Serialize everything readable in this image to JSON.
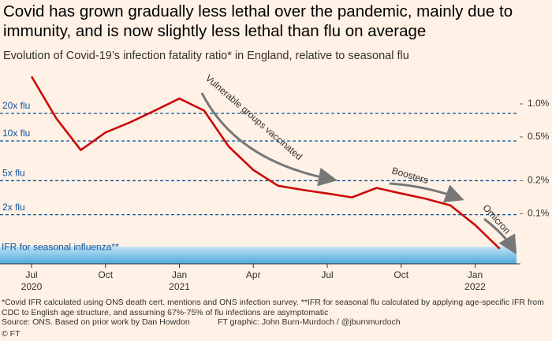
{
  "chart_data": {
    "type": "line",
    "title": "Covid has grown gradually less lethal over the pandemic, mainly due to immunity, and is now slightly less lethal than flu on average",
    "subtitle": "Evolution of Covid-19’s infection fatality ratio* in England, relative to seasonal flu",
    "x": [
      "2020-07",
      "2020-08",
      "2020-09",
      "2020-10",
      "2020-11",
      "2020-12",
      "2021-01",
      "2021-02",
      "2021-03",
      "2021-04",
      "2021-05",
      "2021-06",
      "2021-07",
      "2021-08",
      "2021-09",
      "2021-10",
      "2021-11",
      "2021-12",
      "2022-01",
      "2022-02"
    ],
    "series": [
      {
        "name": "Covid IFR",
        "color": "#cc0a0a",
        "values": [
          1.78,
          0.74,
          0.38,
          0.55,
          0.68,
          0.87,
          1.12,
          0.87,
          0.41,
          0.25,
          0.18,
          0.165,
          0.153,
          0.141,
          0.172,
          0.153,
          0.137,
          0.119,
          0.079,
          0.048
        ]
      }
    ],
    "xlim": [
      "2020-07",
      "2022-03"
    ],
    "xticks": [
      {
        "value": "2020-07",
        "label": "Jul"
      },
      {
        "value": "2020-10",
        "label": "Oct"
      },
      {
        "value": "2021-01",
        "label": "Jan"
      },
      {
        "value": "2021-04",
        "label": "Apr"
      },
      {
        "value": "2021-07",
        "label": "Jul"
      },
      {
        "value": "2021-10",
        "label": "Oct"
      },
      {
        "value": "2022-01",
        "label": "Jan"
      }
    ],
    "xtick_years": [
      {
        "value": "2020-07",
        "label": "2020"
      },
      {
        "value": "2021-01",
        "label": "2021"
      },
      {
        "value": "2022-01",
        "label": "2022"
      }
    ],
    "ylim": [
      0.035,
      2.0
    ],
    "log_y": true,
    "yticks": [
      {
        "value": 1.0,
        "label": "1.0%"
      },
      {
        "value": 0.5,
        "label": "0.5%"
      },
      {
        "value": 0.2,
        "label": "0.2%"
      },
      {
        "value": 0.1,
        "label": "0.1%"
      }
    ],
    "ref_lines": [
      {
        "label": "20x flu",
        "value": 0.82
      },
      {
        "label": "10x flu",
        "value": 0.46
      },
      {
        "label": "5x flu",
        "value": 0.2
      },
      {
        "label": "2x flu",
        "value": 0.098
      }
    ],
    "ref_color": "#0f5499",
    "flu_band": {
      "label": "IFR for seasonal influenza**",
      "range": [
        0.035,
        0.05
      ]
    },
    "annotations": [
      "Vulnerable groups vaccinated",
      "Boosters",
      "Omicron"
    ],
    "footnotes": [
      "*Covid IFR calculated using ONS death cert. mentions and ONS infection survey.  **IFR for seasonal flu calculated by applying age-specific IFR from CDC to English age structure, and assuming 67%-75% of flu infections are asymptomatic",
      "Source: ONS. Based on prior work by Dan Howdon",
      "FT graphic: John Burn-Murdoch / @jburnmurdoch",
      "© FT"
    ]
  }
}
